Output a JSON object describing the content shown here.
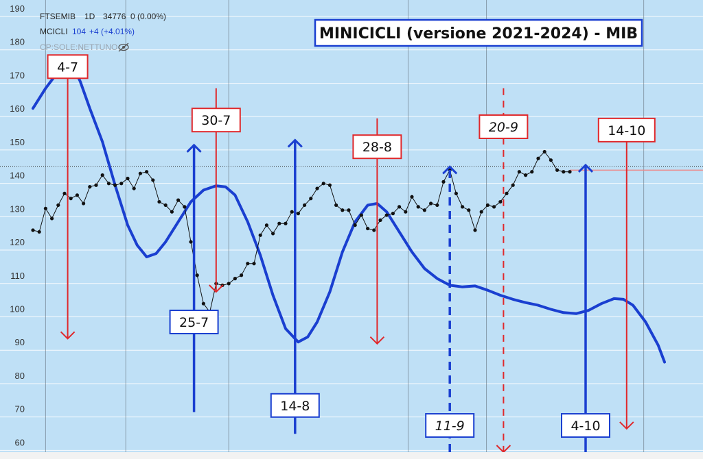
{
  "legend": {
    "symbol": "FTSEMIB",
    "interval": "1D",
    "price": "34776",
    "change": "0 (0.00%)",
    "indicator": "MCICLI",
    "indicator_value": "104",
    "indicator_change": "+4 (+4.01%)",
    "overlay_label": "CP:SOLE:NETTUNO"
  },
  "colors": {
    "plot_bg": "#bfe0f6",
    "blue": "#1a3fd0",
    "red": "#e0282b",
    "black": "#111111",
    "gridline": "#ffffff",
    "vline": "#5a6670"
  },
  "chart_data": {
    "type": "line",
    "title": "MINICICLI (versione 2021-2024) - MIB",
    "ylim": [
      57,
      190
    ],
    "y_ticks": [
      60,
      70,
      80,
      90,
      100,
      110,
      120,
      130,
      140,
      150,
      160,
      170,
      180,
      190
    ],
    "x_domain": [
      0,
      100
    ],
    "reference_level": 142.5,
    "series": [
      {
        "style": "blue-thick",
        "points": [
          [
            0,
            160
          ],
          [
            2,
            166
          ],
          [
            4,
            171
          ],
          [
            5.5,
            172.5
          ],
          [
            6.5,
            172
          ],
          [
            7.5,
            168
          ],
          [
            9,
            160
          ],
          [
            11,
            150
          ],
          [
            13,
            137
          ],
          [
            15,
            125
          ],
          [
            16.5,
            119
          ],
          [
            18,
            115.5
          ],
          [
            19.5,
            116.5
          ],
          [
            21,
            120
          ],
          [
            23,
            126
          ],
          [
            25,
            132
          ],
          [
            27,
            135.5
          ],
          [
            29,
            136.8
          ],
          [
            30.5,
            136.5
          ],
          [
            32,
            134
          ],
          [
            34,
            126
          ],
          [
            36,
            116
          ],
          [
            38,
            104
          ],
          [
            40,
            94
          ],
          [
            42,
            90
          ],
          [
            43.5,
            91.5
          ],
          [
            45,
            96
          ],
          [
            47,
            105
          ],
          [
            49,
            117
          ],
          [
            51,
            126
          ],
          [
            53,
            131
          ],
          [
            54.5,
            131.5
          ],
          [
            56,
            129
          ],
          [
            58,
            123
          ],
          [
            60,
            117
          ],
          [
            62,
            112
          ],
          [
            64,
            109
          ],
          [
            66,
            107
          ],
          [
            68,
            106.5
          ],
          [
            70,
            106.8
          ],
          [
            72,
            105.5
          ],
          [
            74,
            104
          ],
          [
            76,
            102.8
          ],
          [
            78,
            101.8
          ],
          [
            80,
            101
          ],
          [
            82,
            99.8
          ],
          [
            84,
            98.8
          ],
          [
            86,
            98.5
          ],
          [
            88,
            99.5
          ],
          [
            90,
            101.5
          ],
          [
            92,
            103
          ],
          [
            93.5,
            102.8
          ],
          [
            95,
            101
          ],
          [
            97,
            96
          ],
          [
            99,
            89
          ],
          [
            100,
            84
          ]
        ]
      },
      {
        "style": "black-dotted",
        "points": [
          [
            0,
            123.5
          ],
          [
            1,
            123
          ],
          [
            2,
            130
          ],
          [
            3,
            127
          ],
          [
            4,
            131
          ],
          [
            5,
            134.5
          ],
          [
            6,
            133
          ],
          [
            7,
            134
          ],
          [
            8,
            131.5
          ],
          [
            9,
            136.5
          ],
          [
            10,
            137
          ],
          [
            11,
            140
          ],
          [
            12,
            137.5
          ],
          [
            13,
            137
          ],
          [
            14,
            137.5
          ],
          [
            15,
            139
          ],
          [
            16,
            136
          ],
          [
            17,
            140.5
          ],
          [
            18,
            141
          ],
          [
            19,
            138.5
          ],
          [
            20,
            132
          ],
          [
            21,
            131
          ],
          [
            22,
            129
          ],
          [
            23,
            132.5
          ],
          [
            24,
            130.5
          ],
          [
            25,
            120
          ],
          [
            26,
            110
          ],
          [
            27,
            101.5
          ],
          [
            28,
            99
          ],
          [
            29,
            107.5
          ],
          [
            30,
            107
          ],
          [
            31,
            107.5
          ],
          [
            32,
            109
          ],
          [
            33,
            110
          ],
          [
            34,
            113.5
          ],
          [
            35,
            113.5
          ],
          [
            36,
            122
          ],
          [
            37,
            125
          ],
          [
            38,
            122.5
          ],
          [
            39,
            125.5
          ],
          [
            40,
            125.5
          ],
          [
            41,
            129
          ],
          [
            42,
            128.5
          ],
          [
            43,
            131
          ],
          [
            44,
            133
          ],
          [
            45,
            136
          ],
          [
            46,
            137.5
          ],
          [
            47,
            137
          ],
          [
            48,
            131
          ],
          [
            49,
            129.5
          ],
          [
            50,
            129.5
          ],
          [
            51,
            125
          ],
          [
            52,
            128
          ],
          [
            53,
            124
          ],
          [
            54,
            123.5
          ],
          [
            55,
            126.5
          ],
          [
            56,
            128
          ],
          [
            57,
            128.5
          ],
          [
            58,
            130.5
          ],
          [
            59,
            129
          ],
          [
            60,
            133.5
          ],
          [
            61,
            130.5
          ],
          [
            62,
            129.5
          ],
          [
            63,
            131.5
          ],
          [
            64,
            131
          ],
          [
            65,
            138
          ],
          [
            66,
            141.5
          ],
          [
            67,
            134.5
          ],
          [
            68,
            130.5
          ],
          [
            69,
            129.5
          ],
          [
            70,
            123.5
          ],
          [
            71,
            129
          ],
          [
            72,
            131
          ],
          [
            73,
            130.5
          ],
          [
            74,
            132
          ],
          [
            75,
            134.5
          ],
          [
            76,
            137
          ],
          [
            77,
            141
          ],
          [
            78,
            140
          ],
          [
            79,
            141
          ],
          [
            80,
            145
          ],
          [
            81,
            147
          ],
          [
            82,
            144.5
          ],
          [
            83,
            141.5
          ],
          [
            84,
            141
          ],
          [
            85,
            141
          ]
        ]
      }
    ],
    "markers": [
      {
        "label": "4-7",
        "dir": "down",
        "color": "red",
        "style": "solid",
        "x": 5.5,
        "box_y": 172.5,
        "y_from": 172,
        "y_to": 91,
        "italic": false
      },
      {
        "label": "30-7",
        "dir": "down",
        "color": "red",
        "style": "solid",
        "x": 29,
        "box_y": 156.5,
        "y_from": 166,
        "y_to": 105,
        "italic": false
      },
      {
        "label": "28-8",
        "dir": "down",
        "color": "red",
        "style": "solid",
        "x": 54.5,
        "box_y": 148.5,
        "y_from": 157,
        "y_to": 89.5,
        "italic": false
      },
      {
        "label": "20-9",
        "dir": "down",
        "color": "red",
        "style": "dashed",
        "x": 74.5,
        "box_y": 154.5,
        "y_from": 166,
        "y_to": 57,
        "italic": true
      },
      {
        "label": "14-10",
        "dir": "down",
        "color": "red",
        "style": "solid",
        "x": 94,
        "box_y": 153.5,
        "y_from": 153,
        "y_to": 64,
        "italic": false
      },
      {
        "label": "25-7",
        "dir": "up",
        "color": "blue",
        "style": "solid",
        "x": 25.5,
        "box_y": 96,
        "y_from": 69,
        "y_to": 149,
        "italic": false
      },
      {
        "label": "14-8",
        "dir": "up",
        "color": "blue",
        "style": "solid",
        "x": 41.5,
        "box_y": 71,
        "y_from": 62.5,
        "y_to": 150.5,
        "italic": false
      },
      {
        "label": "11-9",
        "dir": "up",
        "color": "blue",
        "style": "dashed",
        "x": 66,
        "box_y": 65,
        "y_from": 57,
        "y_to": 142.5,
        "italic": true
      },
      {
        "label": "4-10",
        "dir": "up",
        "color": "blue",
        "style": "solid",
        "x": 87.5,
        "box_y": 65,
        "y_from": 57,
        "y_to": 143,
        "italic": false
      }
    ]
  }
}
